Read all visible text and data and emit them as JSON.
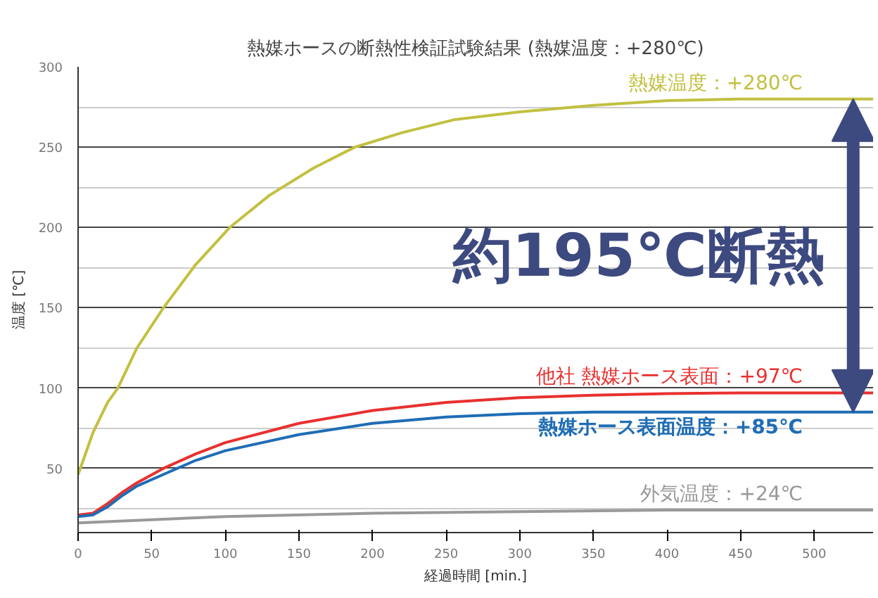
{
  "chart_data": {
    "type": "line",
    "title": "熱媒ホースの断熱性検証試験結果 (熱媒温度：+280℃)",
    "xlabel": "経過時間 [min.]",
    "ylabel": "温度 [℃]",
    "annotations": [
      "約195℃断熱"
    ],
    "xlim": [
      0,
      540
    ],
    "xticks": [
      0,
      50,
      100,
      150,
      200,
      250,
      300,
      350,
      400,
      450,
      500
    ],
    "ylim": [
      10,
      300
    ],
    "yticks": [
      {
        "value": 25,
        "label": null
      },
      50,
      {
        "value": 75,
        "label": null
      },
      100,
      {
        "value": 125,
        "label": null
      },
      150,
      {
        "value": 175,
        "label": null
      },
      200,
      {
        "value": 225,
        "label": null
      },
      250,
      {
        "value": 275,
        "label": null
      },
      300
    ],
    "grid": "y",
    "marker": "none",
    "line_style": "solid",
    "series": [
      {
        "name": "熱媒温度：+280℃",
        "color": "#c2c040",
        "x": [
          0,
          10,
          20,
          27,
          40,
          58,
          80,
          103,
          130,
          160,
          188,
          220,
          255,
          300,
          350,
          400,
          450,
          540
        ],
        "values": [
          46,
          72,
          91,
          100,
          125,
          150,
          177,
          200,
          220,
          237,
          250,
          259,
          267,
          272,
          276,
          279,
          280,
          280
        ]
      },
      {
        "name": "他社 熱媒ホース表面：+97℃",
        "color": "#e8312f",
        "x": [
          0,
          10,
          20,
          30,
          40,
          58,
          80,
          100,
          150,
          200,
          250,
          300,
          350,
          400,
          450,
          540
        ],
        "values": [
          21,
          22,
          28,
          35,
          41,
          50,
          59,
          66,
          78,
          86,
          91,
          94,
          95.5,
          96.5,
          97,
          97
        ]
      },
      {
        "name": "熱媒ホース表面温度：+85℃",
        "color": "#1f6db5",
        "x": [
          0,
          10,
          20,
          30,
          40,
          60,
          80,
          100,
          150,
          200,
          250,
          300,
          350,
          400,
          450,
          540
        ],
        "values": [
          20,
          21,
          26,
          33,
          39,
          47,
          55,
          61,
          71,
          78,
          82,
          84,
          85,
          85,
          85,
          85
        ]
      },
      {
        "name": "外気温度：+24℃",
        "color": "#999999",
        "x": [
          0,
          100,
          200,
          300,
          400,
          540
        ],
        "values": [
          16,
          20,
          22,
          23,
          24,
          24
        ]
      }
    ]
  }
}
